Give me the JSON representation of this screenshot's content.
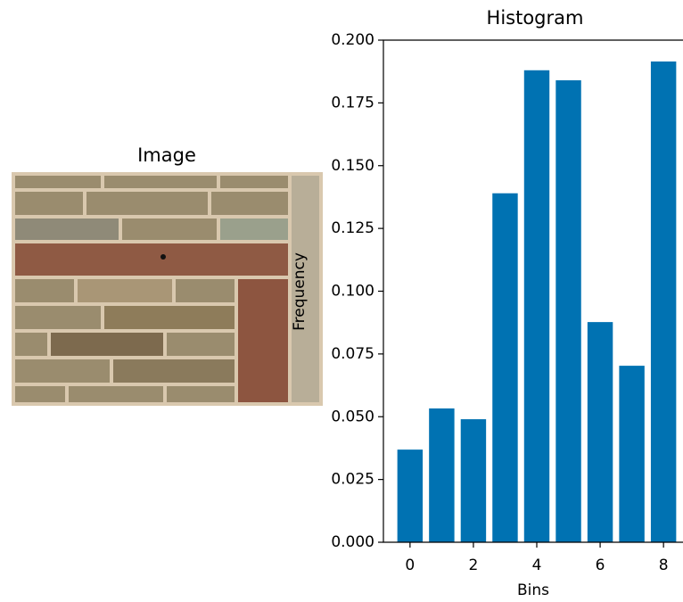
{
  "chart_data": [
    {
      "type": "image",
      "title": "Image"
    },
    {
      "type": "bar",
      "title": "Histogram",
      "xlabel": "Bins",
      "ylabel": "Frequency",
      "x": [
        0,
        1,
        2,
        3,
        4,
        5,
        6,
        7,
        8
      ],
      "values": [
        0.0369,
        0.0533,
        0.049,
        0.139,
        0.188,
        0.184,
        0.0877,
        0.0703,
        0.1915
      ],
      "color": "#0072b2",
      "xlim": [
        -0.84,
        8.84
      ],
      "xticks": [
        0,
        2,
        4,
        6,
        8
      ],
      "ylim": [
        0,
        0.2
      ],
      "yticks": [
        {
          "value": 0,
          "label": "0.000"
        },
        {
          "value": 0.025,
          "label": "0.025"
        },
        {
          "value": 0.05,
          "label": "0.050"
        },
        {
          "value": 0.075,
          "label": "0.075"
        },
        {
          "value": 0.1,
          "label": "0.100"
        },
        {
          "value": 0.125,
          "label": "0.125"
        },
        {
          "value": 0.15,
          "label": "0.150"
        },
        {
          "value": 0.175,
          "label": "0.175"
        },
        {
          "value": 0.2,
          "label": "0.200"
        }
      ]
    }
  ]
}
